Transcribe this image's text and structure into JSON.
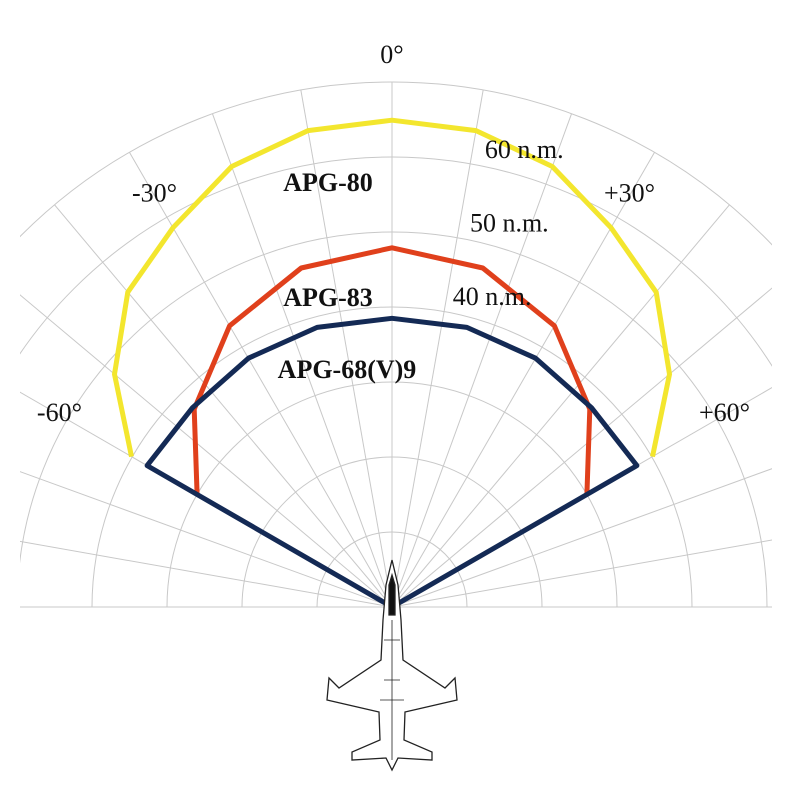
{
  "chart_data": {
    "type": "polar",
    "rlim": [
      0,
      70
    ],
    "rgrid_step": 10,
    "agrid_step": 10,
    "angle_ticks": [
      {
        "value": -60,
        "label": "-60°"
      },
      {
        "value": -30,
        "label": "-30°"
      },
      {
        "value": 0,
        "label": "0°"
      },
      {
        "value": 30,
        "label": "+30°"
      },
      {
        "value": 60,
        "label": "+60°"
      }
    ],
    "range_ticks": [
      {
        "value": 40,
        "label": "40 n.m."
      },
      {
        "value": 50,
        "label": "50 n.m."
      },
      {
        "value": 60,
        "label": "60 n.m."
      }
    ],
    "series": [
      {
        "name": "APG-80",
        "color": "#f3e62e",
        "x": [
          -60,
          -50,
          -40,
          -30,
          -20,
          -10,
          0,
          10,
          20,
          30,
          40,
          50,
          60
        ],
        "values": [
          40.1,
          48.3,
          54.8,
          58.4,
          62.5,
          64.5,
          64.9,
          64.5,
          62.5,
          58.4,
          54.8,
          48.3,
          40.1
        ]
      },
      {
        "name": "APG-83",
        "color": "#e0401c",
        "x": [
          -60,
          -45,
          -30,
          -15,
          0,
          15,
          30,
          45,
          60
        ],
        "values": [
          30,
          37.3,
          43.3,
          46.8,
          47.9,
          46.8,
          43.3,
          37.3,
          30
        ]
      },
      {
        "name": "APG-68(V)9",
        "color": "#142a55",
        "sector": true,
        "x": [
          -60,
          -45,
          -30,
          -15,
          0,
          15,
          30,
          45,
          60
        ],
        "values": [
          37.7,
          37.6,
          38.3,
          38.6,
          38.5,
          38.6,
          38.3,
          37.6,
          37.7
        ]
      }
    ]
  }
}
